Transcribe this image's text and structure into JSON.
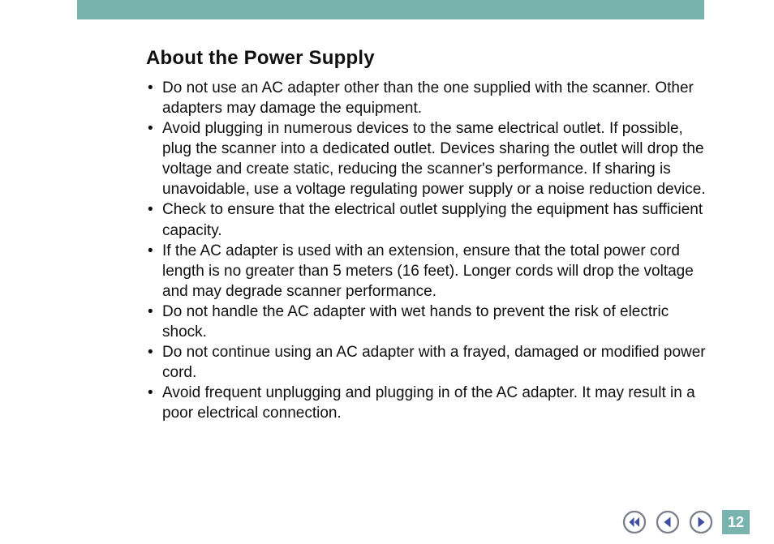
{
  "colors": {
    "header_bar": "#78b4ad",
    "heading_text": "#101010",
    "body_text": "#101010",
    "nav_ring": "#7a7f8a",
    "nav_arrow": "#3f4fa0",
    "nav_bg": "#ffffff",
    "page_box": "#78b4ad",
    "page_num_text": "#ffffff"
  },
  "typography": {
    "heading_fontsize": 24,
    "heading_weight": 800,
    "body_fontsize": 19,
    "body_lineheight": 1.32,
    "page_num_fontsize": 18,
    "page_num_weight": 800
  },
  "heading": "About the Power Supply",
  "bullets": [
    "Do not use an AC adapter other than the one supplied with the scanner. Other adapters may damage the equipment.",
    "Avoid plugging in numerous devices to the same electrical outlet. If possible, plug the scanner into a dedicated outlet. Devices sharing the outlet will drop the voltage and create static, reducing the scanner's performance. If sharing is unavoidable, use a voltage regulating power supply or a noise reduction device.",
    "Check to ensure that the electrical outlet supplying the equipment has sufficient capacity.",
    "If the AC adapter is used with an extension, ensure that the total power cord length is no greater than 5 meters (16 feet). Longer cords will drop the voltage and may degrade scanner performance.",
    "Do not handle the AC adapter with wet hands to prevent the risk of electric shock.",
    "Do not continue using an AC adapter with a frayed, damaged or modi­fied power cord.",
    "Avoid frequent unplugging and plugging in of the AC adapter. It may result in a poor electrical connection."
  ],
  "nav": {
    "first_tooltip": "First page",
    "prev_tooltip": "Previous page",
    "next_tooltip": "Next page"
  },
  "page_number": "12"
}
